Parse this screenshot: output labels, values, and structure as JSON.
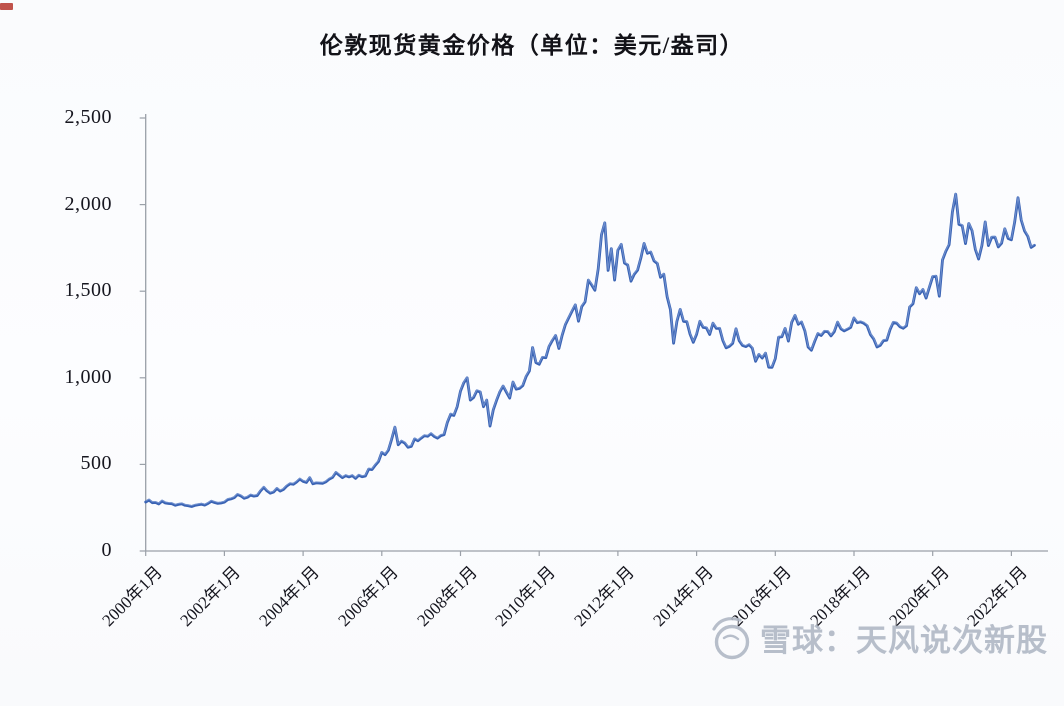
{
  "page": {
    "background": "#fbfcfe",
    "corner_mark_color": "#b5342c"
  },
  "chart_data": {
    "type": "line",
    "title": "伦敦现货黄金价格（单位：美元/盎司）",
    "xlabel": "",
    "ylabel": "",
    "ylim": [
      0,
      2500
    ],
    "grid": "off",
    "legend": "none",
    "axis_color": "#9aa0a8",
    "tick_label_color": "#16161f",
    "y_tick_values": [
      0,
      500,
      1000,
      1500,
      2000,
      2500
    ],
    "y_tick_labels": [
      "0",
      "500",
      "1,000",
      "1,500",
      "2,000",
      "2,500"
    ],
    "x_tick_years": [
      2000,
      2002,
      2004,
      2006,
      2008,
      2010,
      2012,
      2014,
      2016,
      2018,
      2020,
      2022
    ],
    "x_tick_labels": [
      "2000年1月",
      "2002年1月",
      "2004年1月",
      "2006年1月",
      "2008年1月",
      "2010年1月",
      "2012年1月",
      "2014年1月",
      "2016年1月",
      "2018年1月",
      "2020年1月",
      "2022年1月"
    ],
    "series": [
      {
        "name": "伦敦现货黄金价格",
        "unit": "美元/盎司",
        "color": "#3a63b4",
        "highlight_color": "#83a1d9",
        "start": "2000-01",
        "freq": "monthly",
        "values": [
          283,
          294,
          279,
          280,
          272,
          288,
          277,
          274,
          273,
          264,
          269,
          272,
          264,
          261,
          257,
          263,
          267,
          270,
          265,
          274,
          287,
          280,
          275,
          277,
          282,
          297,
          301,
          308,
          326,
          318,
          304,
          310,
          323,
          317,
          320,
          347,
          368,
          347,
          334,
          340,
          361,
          346,
          355,
          375,
          388,
          385,
          398,
          415,
          402,
          396,
          423,
          388,
          393,
          392,
          391,
          400,
          415,
          425,
          453,
          438,
          423,
          435,
          428,
          435,
          419,
          437,
          429,
          433,
          473,
          470,
          495,
          517,
          569,
          556,
          582,
          644,
          715,
          613,
          634,
          623,
          599,
          604,
          647,
          636,
          651,
          665,
          662,
          677,
          661,
          651,
          666,
          672,
          743,
          790,
          783,
          834,
          923,
          971,
          1000,
          871,
          886,
          925,
          918,
          833,
          871,
          721,
          815,
          870,
          919,
          952,
          917,
          883,
          975,
          934,
          939,
          955,
          1007,
          1040,
          1175,
          1088,
          1078,
          1118,
          1116,
          1180,
          1215,
          1244,
          1169,
          1246,
          1307,
          1346,
          1384,
          1421,
          1327,
          1411,
          1439,
          1564,
          1536,
          1505,
          1628,
          1826,
          1895,
          1620,
          1746,
          1564,
          1737,
          1770,
          1662,
          1651,
          1558,
          1598,
          1622,
          1692,
          1776,
          1719,
          1726,
          1675,
          1660,
          1580,
          1598,
          1469,
          1394,
          1200,
          1325,
          1395,
          1326,
          1324,
          1253,
          1205,
          1251,
          1326,
          1291,
          1288,
          1250,
          1315,
          1285,
          1285,
          1216,
          1173,
          1182,
          1199,
          1283,
          1214,
          1187,
          1180,
          1191,
          1171,
          1095,
          1135,
          1114,
          1142,
          1061,
          1060,
          1111,
          1234,
          1237,
          1285,
          1212,
          1320,
          1360,
          1309,
          1322,
          1272,
          1178,
          1159,
          1210,
          1255,
          1244,
          1268,
          1266,
          1242,
          1267,
          1321,
          1283,
          1271,
          1280,
          1291,
          1345,
          1318,
          1323,
          1315,
          1301,
          1250,
          1224,
          1178,
          1187,
          1215,
          1217,
          1279,
          1320,
          1316,
          1295,
          1286,
          1300,
          1409,
          1428,
          1520,
          1485,
          1510,
          1460,
          1523,
          1584,
          1586,
          1471,
          1680,
          1730,
          1768,
          1957,
          2060,
          1886,
          1878,
          1775,
          1891,
          1850,
          1742,
          1686,
          1763,
          1900,
          1763,
          1811,
          1812,
          1756,
          1777,
          1860,
          1805,
          1797,
          1900,
          2040,
          1911,
          1848,
          1817,
          1753,
          1765
        ]
      }
    ]
  },
  "watermark": {
    "site": "雪球",
    "text": "雪球：天风说次新股",
    "logo": "xueqiu-snowball-icon",
    "color": "#aeb6c4"
  }
}
